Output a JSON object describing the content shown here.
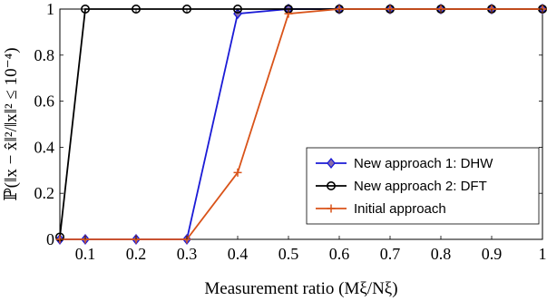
{
  "chart_data": {
    "type": "line",
    "xlabel": "Measurement ratio (Mξ/Nξ)",
    "ylabel": "ℙ(‖x − x̂‖²/‖x‖² ≤ 10⁻⁴)",
    "xlim": [
      0.05,
      1.0
    ],
    "ylim": [
      0,
      1
    ],
    "x_ticks": [
      0.1,
      0.2,
      0.3,
      0.4,
      0.5,
      0.6,
      0.7,
      0.8,
      0.9,
      1
    ],
    "x_tick_labels": [
      "0.1",
      "0.2",
      "0.3",
      "0.4",
      "0.5",
      "0.6",
      "0.7",
      "0.8",
      "0.9",
      "1"
    ],
    "y_ticks": [
      0,
      0.2,
      0.4,
      0.6,
      0.8,
      1
    ],
    "y_tick_labels": [
      "0",
      "0.2",
      "0.4",
      "0.6",
      "0.8",
      "1"
    ],
    "grid": false,
    "legend_position": "bottom-right",
    "series": [
      {
        "name": "New approach 1: DHW",
        "color": "#1a1ad6",
        "marker": "diamond",
        "x": [
          0.05,
          0.1,
          0.2,
          0.3,
          0.4,
          0.5,
          0.6,
          0.7,
          0.8,
          0.9,
          1.0
        ],
        "y": [
          0,
          0,
          0,
          0,
          0.98,
          1,
          1,
          1,
          1,
          1,
          1
        ]
      },
      {
        "name": "New approach 2: DFT",
        "color": "#000000",
        "marker": "circle",
        "x": [
          0.05,
          0.1,
          0.2,
          0.3,
          0.4,
          0.5,
          0.6,
          0.7,
          0.8,
          0.9,
          1.0
        ],
        "y": [
          0.01,
          1,
          1,
          1,
          1,
          1,
          1,
          1,
          1,
          1,
          1
        ]
      },
      {
        "name": "Initial approach",
        "color": "#d95319",
        "marker": "plus",
        "x": [
          0.05,
          0.1,
          0.2,
          0.3,
          0.4,
          0.5,
          0.6,
          0.7,
          0.8,
          0.9,
          1.0
        ],
        "y": [
          0,
          0,
          0,
          0,
          0.29,
          0.98,
          1,
          1,
          1,
          1,
          1
        ]
      }
    ]
  }
}
